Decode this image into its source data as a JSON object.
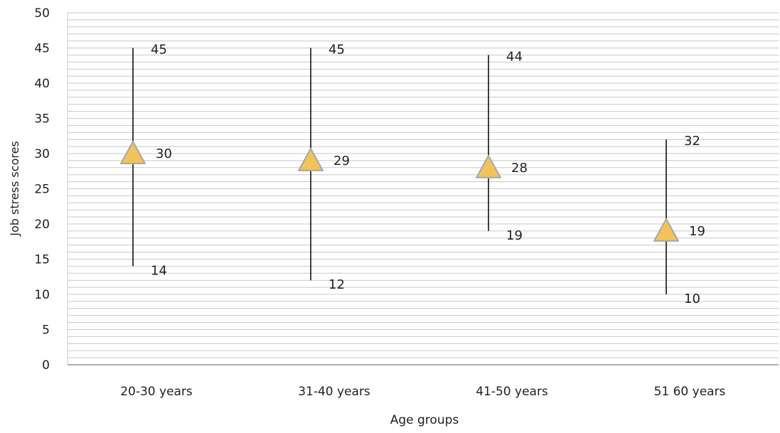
{
  "chart_data": {
    "type": "scatter",
    "subtype": "high-low-mean",
    "title": "",
    "xlabel": "Age groups",
    "ylabel": "Job stress scores",
    "ylim": [
      0,
      50
    ],
    "y_ticks": [
      "0",
      "5",
      "10",
      "15",
      "20",
      "25",
      "30",
      "35",
      "40",
      "45",
      "50"
    ],
    "minor_gridline_step": 1,
    "grid": true,
    "legend": "none",
    "categories": [
      "20-30 years",
      "31-40 years",
      "41-50 years",
      "51 60 years"
    ],
    "series": [
      {
        "name": "High",
        "values": [
          45,
          45,
          44,
          32
        ]
      },
      {
        "name": "Mean",
        "values": [
          30,
          29,
          28,
          19
        ]
      },
      {
        "name": "Low",
        "values": [
          14,
          12,
          19,
          10
        ]
      }
    ],
    "data_labels": {
      "high": [
        "45",
        "45",
        "44",
        "32"
      ],
      "mean": [
        "30",
        "29",
        "28",
        "19"
      ],
      "low": [
        "14",
        "12",
        "19",
        "10"
      ]
    },
    "colors": {
      "marker_fill": "#F2C25B",
      "marker_stroke": "#A8A8A8",
      "line": "#000000",
      "grid": "#C8C8C8",
      "axis": "#7F7F7F",
      "text": "#1f1f1f"
    },
    "marker": "triangle-icon"
  }
}
